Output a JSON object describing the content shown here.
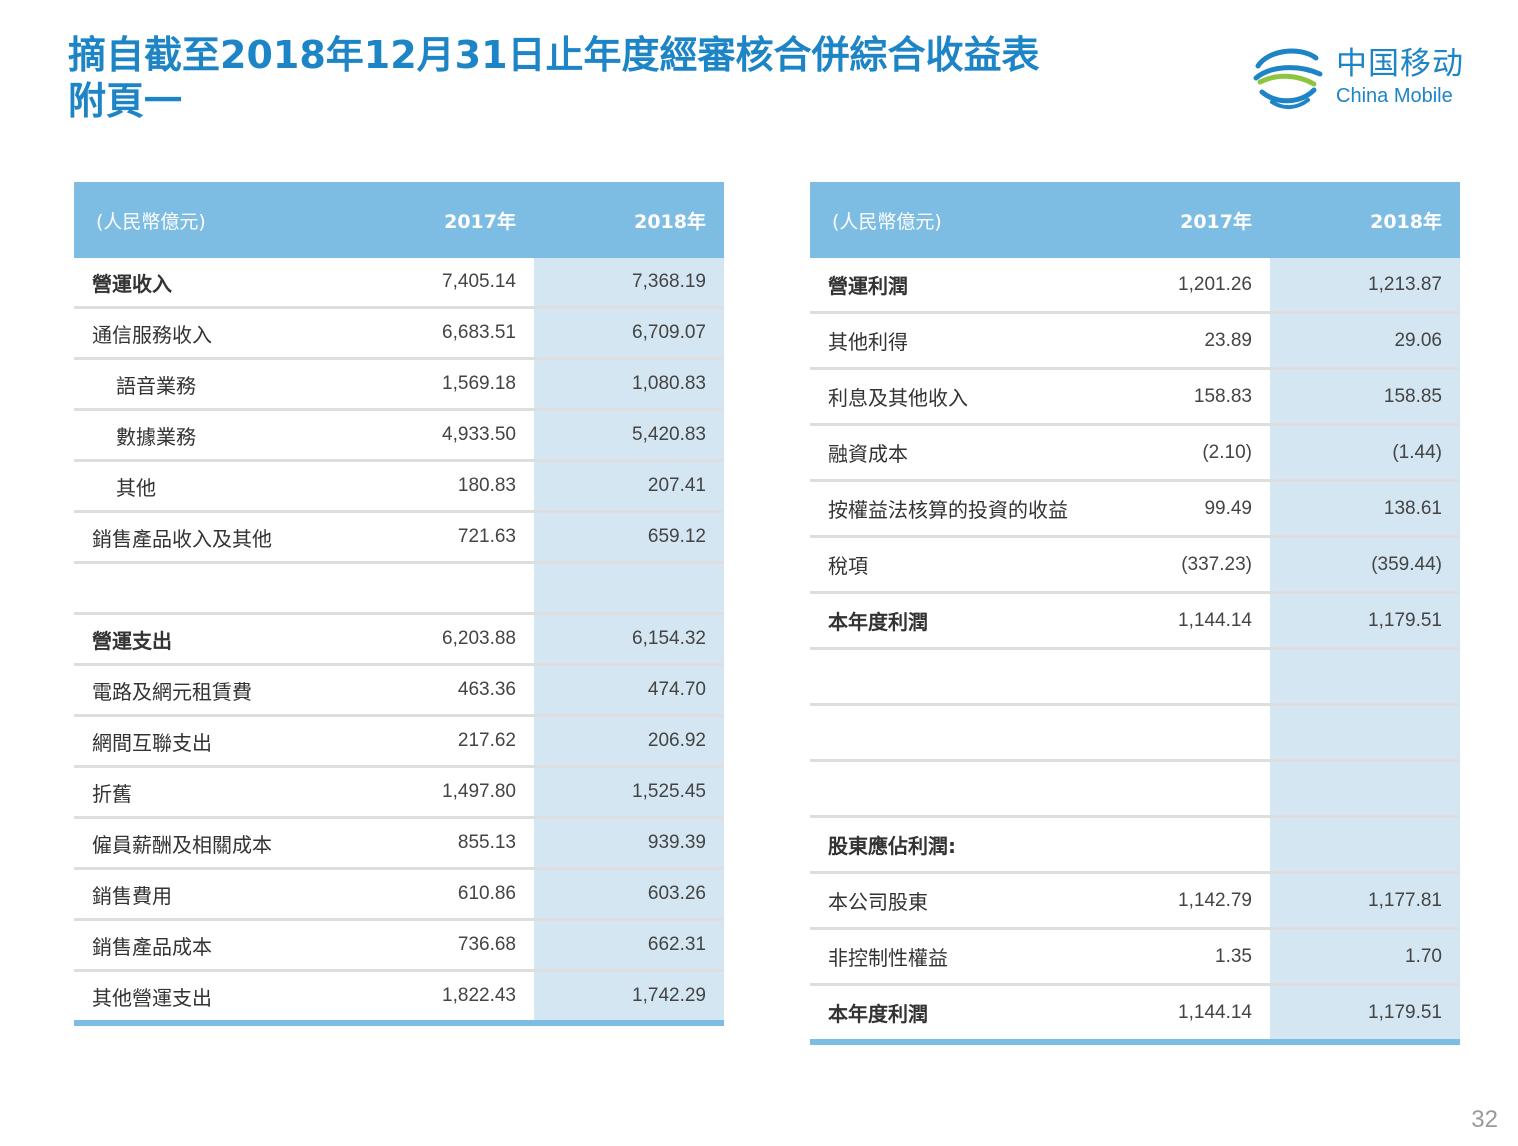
{
  "title": {
    "line1": "摘自截至2018年12月31日止年度經審核合併綜合收益表",
    "line2": "附頁一"
  },
  "logo": {
    "cn": "中国移动",
    "en": "China Mobile",
    "icon": "china-mobile-logo-icon"
  },
  "colors": {
    "title": "#1d84c6",
    "header_bg": "#7dbde3",
    "highlight_col": "#d3e6f2",
    "row_divider": "#dedede"
  },
  "left_table": {
    "header": {
      "unit": "(人民幣億元)",
      "y2017": "2017年",
      "y2018": "2018年"
    },
    "rows": [
      {
        "label": "營運收入",
        "v2017": "7,405.14",
        "v2018": "7,368.19",
        "style": "bold"
      },
      {
        "label": "通信服務收入",
        "v2017": "6,683.51",
        "v2018": "6,709.07",
        "style": ""
      },
      {
        "label": "語音業務",
        "v2017": "1,569.18",
        "v2018": "1,080.83",
        "style": "indent"
      },
      {
        "label": "數據業務",
        "v2017": "4,933.50",
        "v2018": "5,420.83",
        "style": "indent"
      },
      {
        "label": "其他",
        "v2017": "180.83",
        "v2018": "207.41",
        "style": "indent"
      },
      {
        "label": "銷售產品收入及其他",
        "v2017": "721.63",
        "v2018": "659.12",
        "style": ""
      },
      {
        "label": "",
        "v2017": "",
        "v2018": "",
        "style": ""
      },
      {
        "label": "營運支出",
        "v2017": "6,203.88",
        "v2018": "6,154.32",
        "style": "bold"
      },
      {
        "label": "電路及網元租賃費",
        "v2017": "463.36",
        "v2018": "474.70",
        "style": ""
      },
      {
        "label": "網間互聯支出",
        "v2017": "217.62",
        "v2018": "206.92",
        "style": ""
      },
      {
        "label": "折舊",
        "v2017": "1,497.80",
        "v2018": "1,525.45",
        "style": ""
      },
      {
        "label": "僱員薪酬及相關成本",
        "v2017": "855.13",
        "v2018": "939.39",
        "style": ""
      },
      {
        "label": "銷售費用",
        "v2017": "610.86",
        "v2018": "603.26",
        "style": ""
      },
      {
        "label": "銷售產品成本",
        "v2017": "736.68",
        "v2018": "662.31",
        "style": ""
      },
      {
        "label": "其他營運支出",
        "v2017": "1,822.43",
        "v2018": "1,742.29",
        "style": ""
      }
    ]
  },
  "right_table": {
    "header": {
      "unit": "(人民幣億元)",
      "y2017": "2017年",
      "y2018": "2018年"
    },
    "rows": [
      {
        "label": "營運利潤",
        "v2017": "1,201.26",
        "v2018": "1,213.87",
        "style": "bold"
      },
      {
        "label": "其他利得",
        "v2017": "23.89",
        "v2018": "29.06",
        "style": ""
      },
      {
        "label": "利息及其他收入",
        "v2017": "158.83",
        "v2018": "158.85",
        "style": ""
      },
      {
        "label": "融資成本",
        "v2017": "(2.10)",
        "v2018": "(1.44)",
        "style": ""
      },
      {
        "label": "按權益法核算的投資的收益",
        "v2017": "99.49",
        "v2018": "138.61",
        "style": ""
      },
      {
        "label": "稅項",
        "v2017": "(337.23)",
        "v2018": "(359.44)",
        "style": ""
      },
      {
        "label": "本年度利潤",
        "v2017": "1,144.14",
        "v2018": "1,179.51",
        "style": "bold"
      },
      {
        "label": "",
        "v2017": "",
        "v2018": "",
        "style": ""
      },
      {
        "label": "",
        "v2017": "",
        "v2018": "",
        "style": ""
      },
      {
        "label": "",
        "v2017": "",
        "v2018": "",
        "style": ""
      },
      {
        "label": "股東應佔利潤:",
        "v2017": "",
        "v2018": "",
        "style": "bold"
      },
      {
        "label": "本公司股東",
        "v2017": "1,142.79",
        "v2018": "1,177.81",
        "style": ""
      },
      {
        "label": "非控制性權益",
        "v2017": "1.35",
        "v2018": "1.70",
        "style": ""
      },
      {
        "label": "本年度利潤",
        "v2017": "1,144.14",
        "v2018": "1,179.51",
        "style": "bold"
      }
    ]
  },
  "page_number": "32"
}
